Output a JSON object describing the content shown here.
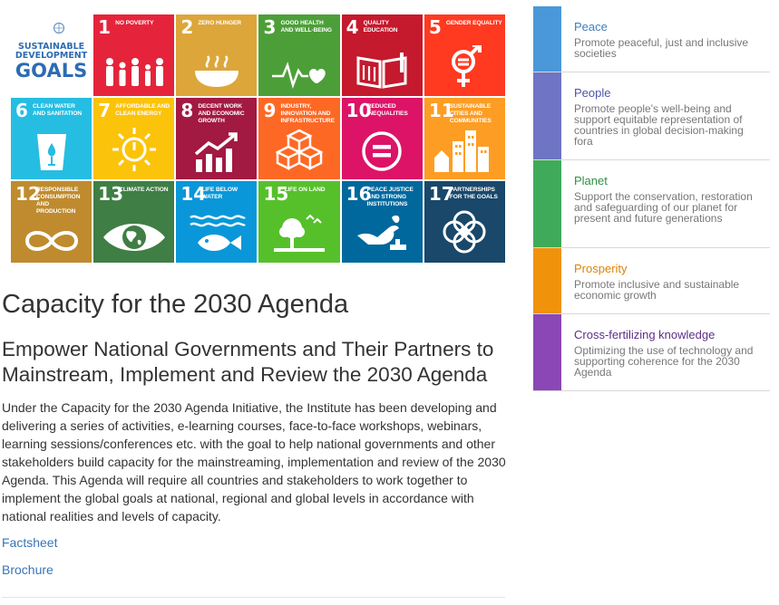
{
  "sdg": {
    "logo": {
      "line1": "SUSTAINABLE",
      "line2": "DEVELOPMENT",
      "line3": "GOALS"
    },
    "goals": [
      {
        "num": "1",
        "label": "NO POVERTY",
        "color": "#e5243b",
        "icon": "people-icon"
      },
      {
        "num": "2",
        "label": "ZERO HUNGER",
        "color": "#dda63a",
        "icon": "bowl-icon"
      },
      {
        "num": "3",
        "label": "GOOD HEALTH AND WELL-BEING",
        "color": "#4c9f38",
        "icon": "heartbeat-icon"
      },
      {
        "num": "4",
        "label": "QUALITY EDUCATION",
        "color": "#c5192d",
        "icon": "book-icon"
      },
      {
        "num": "5",
        "label": "GENDER EQUALITY",
        "color": "#ff3a21",
        "icon": "gender-icon"
      },
      {
        "num": "6",
        "label": "CLEAN WATER AND SANITATION",
        "color": "#26bde2",
        "icon": "water-glass-icon"
      },
      {
        "num": "7",
        "label": "AFFORDABLE AND CLEAN ENERGY",
        "color": "#fcc30b",
        "icon": "power-sun-icon"
      },
      {
        "num": "8",
        "label": "DECENT WORK AND ECONOMIC GROWTH",
        "color": "#a21942",
        "icon": "growth-chart-icon"
      },
      {
        "num": "9",
        "label": "INDUSTRY, INNOVATION AND INFRASTRUCTURE",
        "color": "#fd6925",
        "icon": "cubes-icon"
      },
      {
        "num": "10",
        "label": "REDUCED INEQUALITIES",
        "color": "#dd1367",
        "icon": "equal-icon"
      },
      {
        "num": "11",
        "label": "SUSTAINABLE CITIES AND COMMUNITIES",
        "color": "#fd9d24",
        "icon": "city-icon"
      },
      {
        "num": "12",
        "label": "RESPONSIBLE CONSUMPTION AND PRODUCTION",
        "color": "#bf8b2e",
        "icon": "infinity-icon"
      },
      {
        "num": "13",
        "label": "CLIMATE ACTION",
        "color": "#3f7e44",
        "icon": "eye-globe-icon"
      },
      {
        "num": "14",
        "label": "LIFE BELOW WATER",
        "color": "#0a97d9",
        "icon": "fish-icon"
      },
      {
        "num": "15",
        "label": "LIFE ON LAND",
        "color": "#56c02b",
        "icon": "tree-icon"
      },
      {
        "num": "16",
        "label": "PEACE JUSTICE AND STRONG INSTITUTIONS",
        "color": "#00689d",
        "icon": "dove-gavel-icon"
      },
      {
        "num": "17",
        "label": "PARTNERSHIPS FOR THE GOALS",
        "color": "#19486a",
        "icon": "rings-icon"
      }
    ]
  },
  "main": {
    "title": "Capacity for the 2030 Agenda",
    "subtitle": "Empower National Governments and Their Partners to Mainstream, Implement and Review the 2030 Agenda",
    "body": "Under the Capacity for the 2030 Agenda Initiative, the Institute has been developing and delivering a series of activities, e-learning courses, face-to-face workshops, webinars, learning sessions/conferences etc. with the goal to help national governments and other stakeholders build capacity for the mainstreaming, implementation and review of the 2030 Agenda. This Agenda will require all countries and stakeholders to work together to implement the global goals at national, regional and global levels in accordance with national realities and levels of capacity.",
    "links": {
      "factsheet": "Factsheet",
      "brochure": "Brochure"
    }
  },
  "pillars": [
    {
      "title": "Peace",
      "description": "Promote peaceful, just and inclusive societies",
      "bar_color": "#4a98da",
      "title_color": "#3d7dbf"
    },
    {
      "title": "People",
      "description": "Promote people's well-being and support equitable representation of countries in global decision-making fora",
      "bar_color": "#6f74c4",
      "title_color": "#4b54a8"
    },
    {
      "title": "Planet",
      "description": "Support the conservation, restoration and safeguarding of our planet for present and future generations",
      "bar_color": "#3fab5a",
      "title_color": "#2f8f45"
    },
    {
      "title": "Prosperity",
      "description": "Promote inclusive and sustainable economic growth",
      "bar_color": "#f0930b",
      "title_color": "#d88408"
    },
    {
      "title": "Cross-fertilizing knowledge",
      "description": "Optimizing the use of technology and supporting coherence for the 2030 Agenda",
      "bar_color": "#8a47b5",
      "title_color": "#5e2d8a"
    }
  ]
}
